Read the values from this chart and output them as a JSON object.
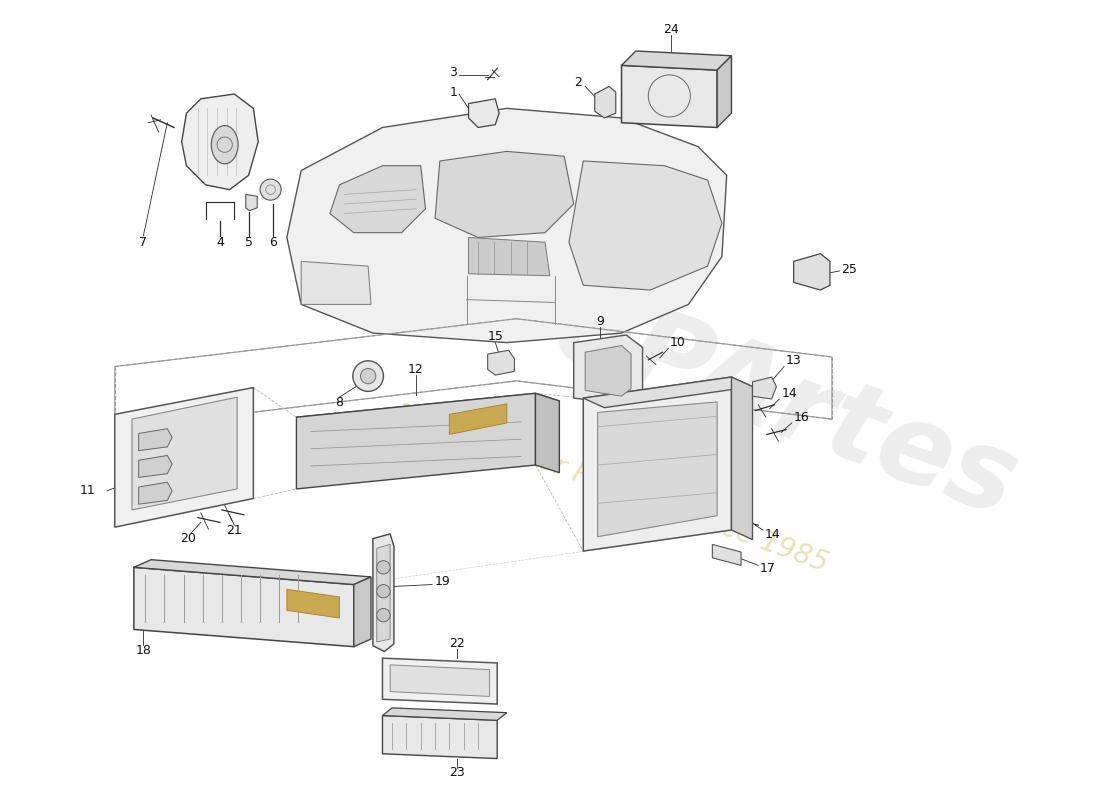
{
  "background_color": "#ffffff",
  "line_color": "#2a2a2a",
  "light_line": "#888888",
  "fill_light": "#e8e8e8",
  "fill_medium": "#d0d0d0",
  "fill_dark": "#b0b0b0",
  "watermark_color": "#cccccc",
  "watermark_yellow": "#d4cc60",
  "figsize": [
    11.0,
    8.0
  ],
  "dpi": 100
}
